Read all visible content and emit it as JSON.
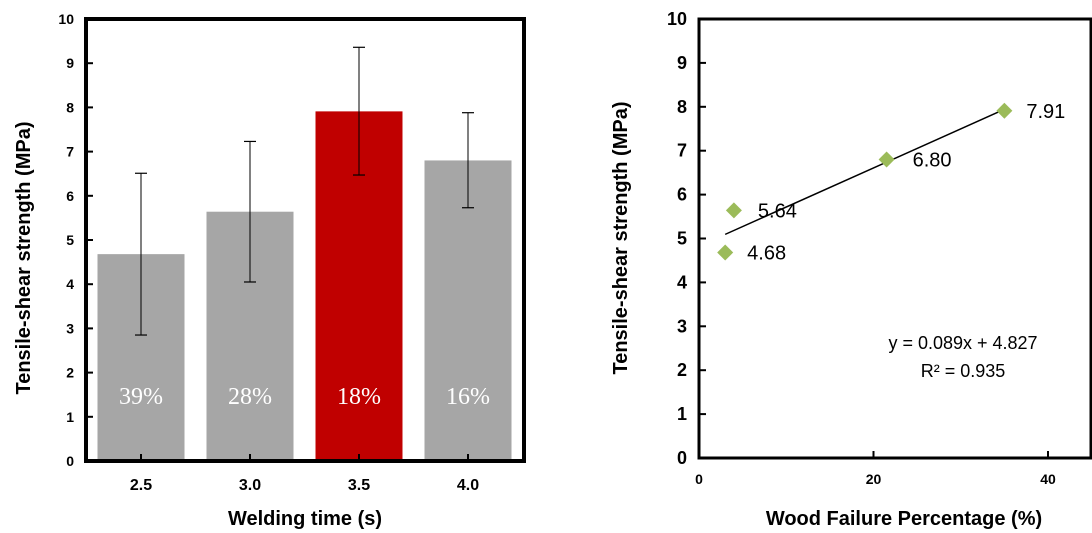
{
  "chart_data": [
    {
      "type": "bar",
      "xlabel": "Welding time (s)",
      "ylabel": "Tensile-shear strength (MPa)",
      "ylim": [
        0,
        10
      ],
      "yticks": [
        "0",
        "1",
        "2",
        "3",
        "4",
        "5",
        "6",
        "7",
        "8",
        "9",
        "10"
      ],
      "categories": [
        "2.5",
        "3.0",
        "3.5",
        "4.0"
      ],
      "values": [
        4.68,
        5.64,
        7.91,
        6.8
      ],
      "error_low": [
        2.85,
        4.05,
        6.47,
        5.73
      ],
      "error_high": [
        6.51,
        7.23,
        9.36,
        7.88
      ],
      "bar_labels": [
        "39%",
        "28%",
        "18%",
        "16%"
      ],
      "colors": [
        "#a6a6a6",
        "#a6a6a6",
        "#c00000",
        "#a6a6a6"
      ],
      "grid": false
    },
    {
      "type": "scatter",
      "xlabel": "Wood Failure Percentage (%)",
      "ylabel": "Tensile-shear strength (MPa)",
      "xlim": [
        0,
        40
      ],
      "ylim": [
        0,
        10
      ],
      "xticks": [
        "0",
        "20",
        "40"
      ],
      "yticks": [
        "0",
        "1",
        "2",
        "3",
        "4",
        "5",
        "6",
        "7",
        "8",
        "9",
        "10"
      ],
      "points": [
        {
          "x": 3.0,
          "y": 4.68,
          "label": "4.68"
        },
        {
          "x": 4.0,
          "y": 5.64,
          "label": "5.64"
        },
        {
          "x": 21.5,
          "y": 6.8,
          "label": "6.80"
        },
        {
          "x": 35.0,
          "y": 7.91,
          "label": "7.91"
        }
      ],
      "marker_color": "#9bbb59",
      "trendline": {
        "slope": 0.089,
        "intercept": 4.827,
        "x_from": 3.0,
        "x_to": 35.0
      },
      "equation": "y = 0.089x + 4.827",
      "r_squared": "R² = 0.935",
      "grid": false
    }
  ]
}
